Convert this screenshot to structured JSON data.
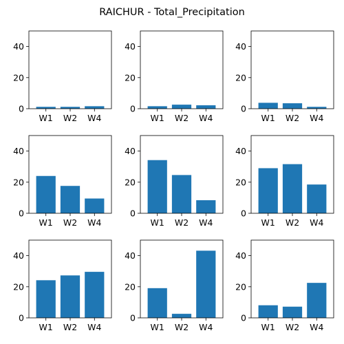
{
  "title": "RAICHUR - Total_Precipitation",
  "bar_color": "#1f77b4",
  "chart_data": [
    {
      "type": "bar",
      "categories": [
        "W1",
        "W2",
        "W4"
      ],
      "values": [
        1.2,
        1.2,
        1.6
      ],
      "ylim": [
        0,
        50
      ],
      "yticks": [
        0,
        20,
        40
      ]
    },
    {
      "type": "bar",
      "categories": [
        "W1",
        "W2",
        "W4"
      ],
      "values": [
        1.6,
        2.6,
        2.2
      ],
      "ylim": [
        0,
        50
      ],
      "yticks": [
        0,
        20,
        40
      ]
    },
    {
      "type": "bar",
      "categories": [
        "W1",
        "W2",
        "W4"
      ],
      "values": [
        3.8,
        3.5,
        1.2
      ],
      "ylim": [
        0,
        50
      ],
      "yticks": [
        0,
        20,
        40
      ]
    },
    {
      "type": "bar",
      "categories": [
        "W1",
        "W2",
        "W4"
      ],
      "values": [
        24.0,
        17.6,
        9.5
      ],
      "ylim": [
        0,
        50
      ],
      "yticks": [
        0,
        20,
        40
      ]
    },
    {
      "type": "bar",
      "categories": [
        "W1",
        "W2",
        "W4"
      ],
      "values": [
        34.2,
        24.6,
        8.4
      ],
      "ylim": [
        0,
        50
      ],
      "yticks": [
        0,
        20,
        40
      ]
    },
    {
      "type": "bar",
      "categories": [
        "W1",
        "W2",
        "W4"
      ],
      "values": [
        29.0,
        31.6,
        18.5
      ],
      "ylim": [
        0,
        50
      ],
      "yticks": [
        0,
        20,
        40
      ]
    },
    {
      "type": "bar",
      "categories": [
        "W1",
        "W2",
        "W4"
      ],
      "values": [
        24.2,
        27.3,
        29.6
      ],
      "ylim": [
        0,
        50
      ],
      "yticks": [
        0,
        20,
        40
      ]
    },
    {
      "type": "bar",
      "categories": [
        "W1",
        "W2",
        "W4"
      ],
      "values": [
        19.1,
        2.6,
        43.2
      ],
      "ylim": [
        0,
        50
      ],
      "yticks": [
        0,
        20,
        40
      ]
    },
    {
      "type": "bar",
      "categories": [
        "W1",
        "W2",
        "W4"
      ],
      "values": [
        8.1,
        7.2,
        22.5
      ],
      "ylim": [
        0,
        50
      ],
      "yticks": [
        0,
        20,
        40
      ]
    }
  ]
}
